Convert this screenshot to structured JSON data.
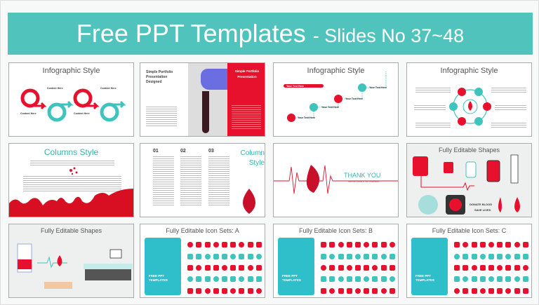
{
  "banner": {
    "title": "Free PPT Templates",
    "subtitle": "- Slides No 37~48",
    "color": "#50c4bc"
  },
  "colors": {
    "red": "#e8112d",
    "teal": "#3fc3bd"
  },
  "slides": [
    {
      "title": "Infographic Style",
      "labels": [
        "Content Here",
        "Content Here",
        "Content Here",
        "Content Here"
      ]
    },
    {
      "title": "Simple Portfolio Presentation Designed",
      "panel_title": "Simple Portfolio Presentation"
    },
    {
      "title": "Infographic Style",
      "labels": [
        "Your Text Here",
        "Your Text Here",
        "Your Text Here",
        "Your Text Here",
        "Your Text Here"
      ]
    },
    {
      "title": "Infographic Style"
    },
    {
      "title": "Columns Style"
    },
    {
      "title": "Column Style",
      "columns": [
        "01",
        "02",
        "03"
      ]
    },
    {
      "title": "THANK YOU",
      "subtitle": "Insert the Subtitle of Your Presentation"
    },
    {
      "title": "Fully Editable Shapes",
      "donate": "DONATE BLOOD",
      "save": "SAVE LIVES"
    },
    {
      "title": "Fully Editable Shapes"
    },
    {
      "title": "Fully Editable Icon Sets: A",
      "panel": "FREE PPT TEMPLATES"
    },
    {
      "title": "Fully Editable Icon Sets: B",
      "panel": "FREE PPT TEMPLATES"
    },
    {
      "title": "Fully Editable Icon Sets: C",
      "panel": "FREE PPT TEMPLATES"
    }
  ]
}
